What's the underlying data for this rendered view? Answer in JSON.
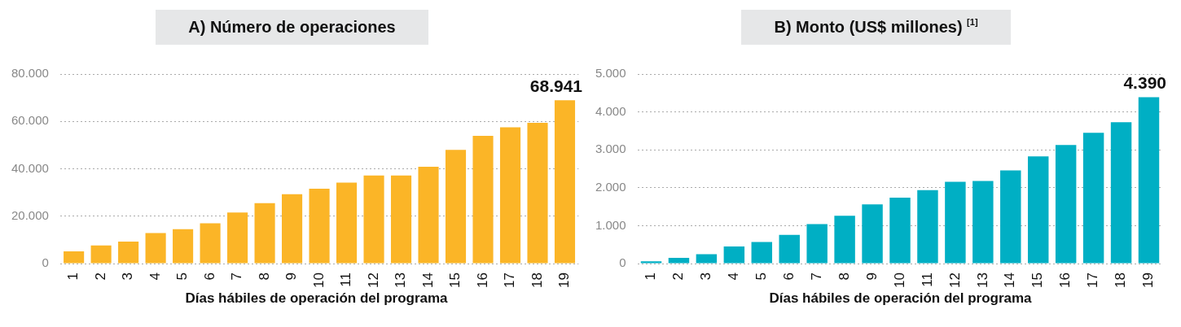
{
  "chart_data": [
    {
      "type": "bar",
      "title": "A) Número de operaciones",
      "xlabel": "Días hábiles de operación del programa",
      "categories": [
        "1",
        "2",
        "3",
        "4",
        "5",
        "6",
        "7",
        "8",
        "9",
        "10",
        "11",
        "12",
        "13",
        "14",
        "15",
        "16",
        "17",
        "18",
        "19"
      ],
      "values": [
        5200,
        7700,
        9300,
        12900,
        14500,
        17000,
        21600,
        25500,
        29300,
        31600,
        34200,
        37200,
        37200,
        40900,
        48000,
        53900,
        57500,
        59400,
        68941
      ],
      "value_labels": [
        null,
        null,
        null,
        null,
        null,
        null,
        null,
        null,
        null,
        null,
        null,
        null,
        null,
        null,
        null,
        null,
        null,
        null,
        "68.941"
      ],
      "color": "#fbb527",
      "ylim": [
        0,
        80000
      ],
      "yticks": [
        0,
        {
          "value": 20000,
          "label": "20.000"
        },
        {
          "value": 40000,
          "label": "40.000"
        },
        {
          "value": 60000,
          "label": "60.000"
        },
        {
          "value": 80000,
          "label": "80.000"
        }
      ],
      "grid": "y",
      "legend": false
    },
    {
      "type": "bar",
      "title": "B) Monto (US$ millones) $^{[1]}$",
      "xlabel": "Días hábiles de operación del programa",
      "categories": [
        "1",
        "2",
        "3",
        "4",
        "5",
        "6",
        "7",
        "8",
        "9",
        "10",
        "11",
        "12",
        "13",
        "14",
        "15",
        "16",
        "17",
        "18",
        "19"
      ],
      "values": [
        60,
        150,
        250,
        450,
        570,
        760,
        1040,
        1260,
        1560,
        1740,
        1940,
        2160,
        2180,
        2460,
        2830,
        3130,
        3450,
        3730,
        4390
      ],
      "value_labels": [
        null,
        null,
        null,
        null,
        null,
        null,
        null,
        null,
        null,
        null,
        null,
        null,
        null,
        null,
        null,
        null,
        null,
        null,
        "4.390"
      ],
      "color": "#00afc4",
      "ylim": [
        0,
        5000
      ],
      "yticks": [
        0,
        {
          "value": 1000,
          "label": "1.000"
        },
        {
          "value": 2000,
          "label": "2.000"
        },
        {
          "value": 3000,
          "label": "3.000"
        },
        {
          "value": 4000,
          "label": "4.000"
        },
        {
          "value": 5000,
          "label": "5.000"
        }
      ],
      "grid": "y",
      "legend": false
    }
  ]
}
